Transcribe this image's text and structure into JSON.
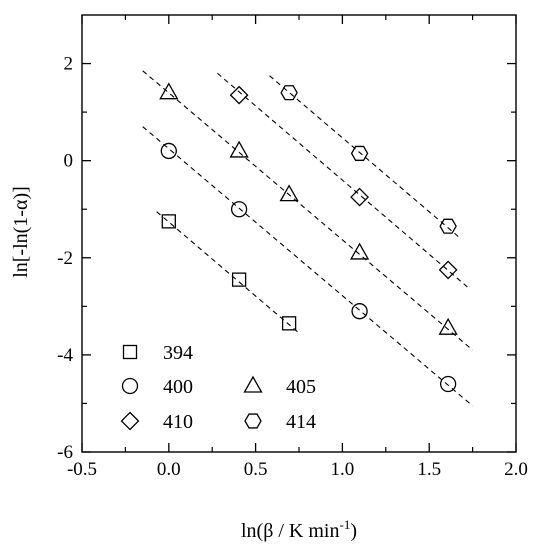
{
  "chart_data": {
    "type": "scatter",
    "xlabel": "ln(β / K min",
    "xlabel_sup": "-1",
    "xlabel_close": ")",
    "ylabel": "ln[-ln(1-α)]",
    "xlim": [
      -0.5,
      2.0
    ],
    "ylim": [
      -6,
      3
    ],
    "xticks": [
      -0.5,
      0.0,
      0.5,
      1.0,
      1.5,
      2.0
    ],
    "xtick_labels": [
      "-0.5",
      "0.0",
      "0.5",
      "1.0",
      "1.5",
      "2.0"
    ],
    "yticks": [
      -6,
      -4,
      -2,
      0,
      2
    ],
    "ytick_labels": [
      "-6",
      "-4",
      "-2",
      "0",
      "2"
    ],
    "grid": false,
    "legend_position": "bottom-left",
    "series": [
      {
        "name": "394",
        "marker": "square",
        "x": [
          0.0,
          0.405,
          0.693
        ],
        "y": [
          -1.25,
          -2.45,
          -3.35
        ],
        "fit": {
          "x": [
            -0.07,
            0.75
          ],
          "y": [
            -1.05,
            -3.55
          ]
        }
      },
      {
        "name": "400",
        "marker": "circle",
        "x": [
          0.0,
          0.405,
          1.099,
          1.609
        ],
        "y": [
          0.2,
          -1.0,
          -3.1,
          -4.6
        ],
        "fit": {
          "x": [
            -0.15,
            1.75
          ],
          "y": [
            0.7,
            -5.05
          ]
        }
      },
      {
        "name": "405",
        "marker": "triangle",
        "x": [
          0.0,
          0.405,
          0.693,
          1.099,
          1.609
        ],
        "y": [
          1.4,
          0.2,
          -0.7,
          -1.9,
          -3.45
        ],
        "fit": {
          "x": [
            -0.15,
            1.75
          ],
          "y": [
            1.85,
            -3.9
          ]
        }
      },
      {
        "name": "410",
        "marker": "diamond",
        "x": [
          0.405,
          1.099,
          1.609
        ],
        "y": [
          1.35,
          -0.75,
          -2.25
        ],
        "fit": {
          "x": [
            0.28,
            1.72
          ],
          "y": [
            1.8,
            -2.6
          ]
        }
      },
      {
        "name": "414",
        "marker": "hexagon",
        "x": [
          0.693,
          1.099,
          1.609
        ],
        "y": [
          1.4,
          0.15,
          -1.35
        ],
        "fit": {
          "x": [
            0.58,
            1.68
          ],
          "y": [
            1.75,
            -1.6
          ]
        }
      }
    ]
  }
}
